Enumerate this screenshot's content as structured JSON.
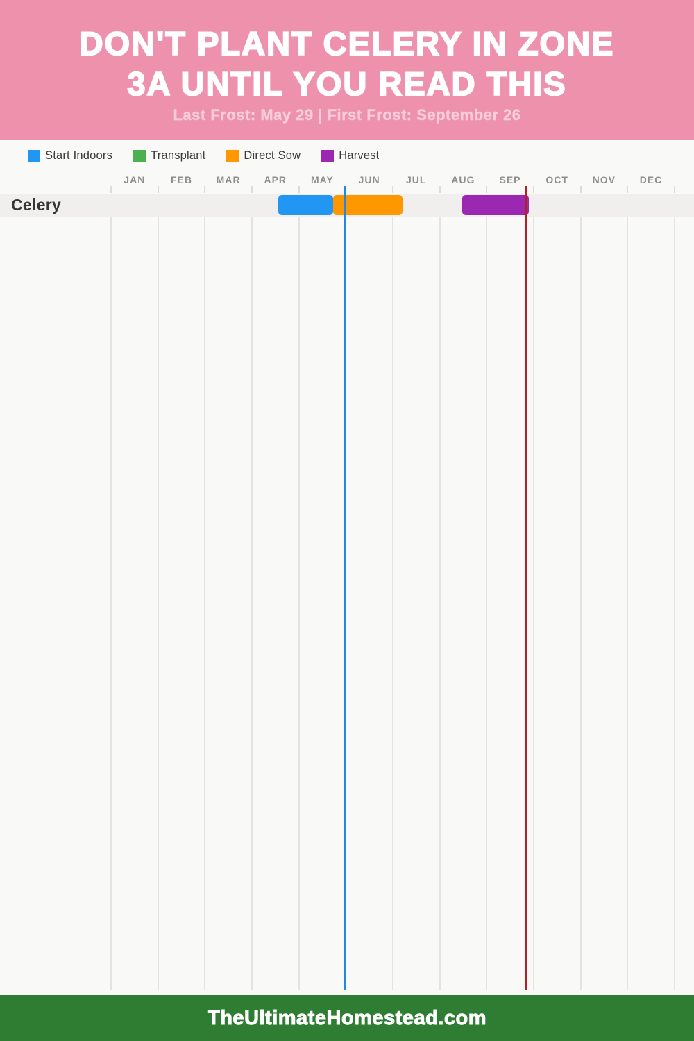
{
  "header": {
    "title_line1": "DON'T PLANT CELERY IN ZONE",
    "title_line2": "3A UNTIL YOU READ THIS",
    "subtitle": "Last Frost: May 29 | First Frost: September 26"
  },
  "legend": [
    {
      "label": "Start Indoors",
      "color": "#2196f3"
    },
    {
      "label": "Transplant",
      "color": "#4caf50"
    },
    {
      "label": "Direct Sow",
      "color": "#ff9800"
    },
    {
      "label": "Harvest",
      "color": "#9c27b0"
    }
  ],
  "chart_data": {
    "type": "gantt",
    "months": [
      "JAN",
      "FEB",
      "MAR",
      "APR",
      "MAY",
      "JUN",
      "JUL",
      "AUG",
      "SEP",
      "OCT",
      "NOV",
      "DEC"
    ],
    "rows": [
      {
        "label": "Celery",
        "segments": [
          {
            "name": "Start Indoors",
            "color": "#2196f3",
            "start_month_frac": 3.56,
            "end_month_frac": 4.73,
            "approx_start": "Apr 17",
            "approx_end": "May 23"
          },
          {
            "name": "Direct Sow",
            "color": "#ff9800",
            "start_month_frac": 4.73,
            "end_month_frac": 6.21,
            "approx_start": "May 23",
            "approx_end": "Jul 6"
          },
          {
            "name": "Harvest",
            "color": "#9c27b0",
            "start_month_frac": 7.48,
            "end_month_frac": 8.9,
            "approx_start": "Aug 15",
            "approx_end": "Sep 27"
          }
        ]
      }
    ],
    "markers": [
      {
        "name": "Last Frost",
        "date": "May 29",
        "month_position": 4.97,
        "color": "#1e88e5"
      },
      {
        "name": "First Frost",
        "date": "September 26",
        "month_position": 8.85,
        "color": "#b22222"
      }
    ],
    "axis_range": [
      "JAN",
      "DEC"
    ],
    "grid": true,
    "legend_position": "top-left"
  },
  "footer": {
    "site": "TheUltimateHomestead.com"
  }
}
